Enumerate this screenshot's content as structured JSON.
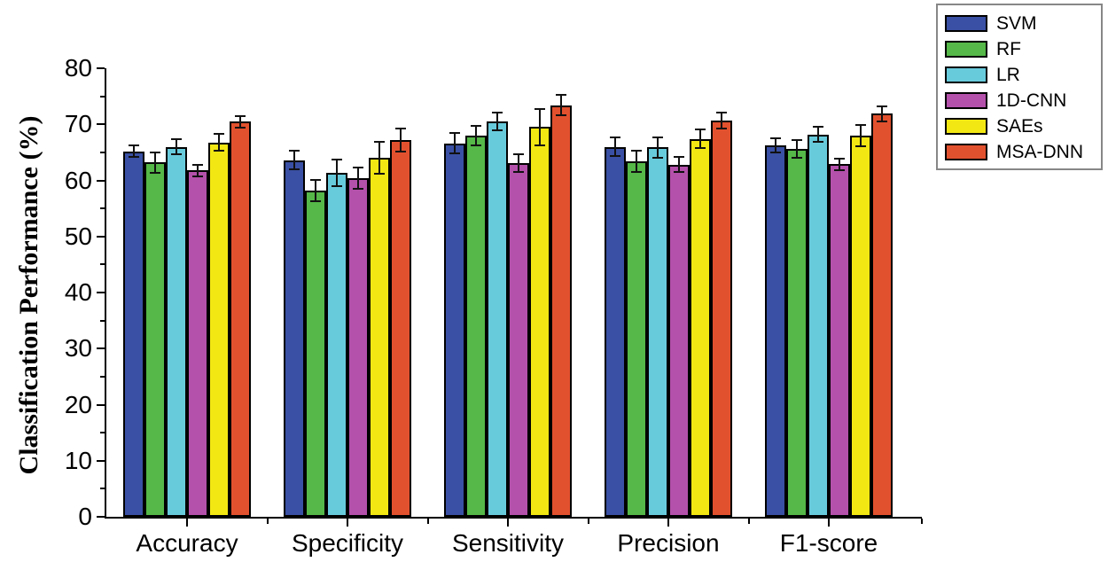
{
  "figure": {
    "background": "#ffffff",
    "axis_color": "#000000"
  },
  "chart_data": {
    "type": "bar",
    "title": "",
    "xlabel": "",
    "ylabel": "Classification Performance (%)",
    "ylim": [
      0,
      80
    ],
    "ytick_step": 10,
    "ytick_minor_step": 5,
    "yticks": [
      0,
      10,
      20,
      30,
      40,
      50,
      60,
      70,
      80
    ],
    "grid": false,
    "error_bars": true,
    "legend_position": "outside-top-right",
    "categories": [
      "Accuracy",
      "Specificity",
      "Sensitivity",
      "Precision",
      "F1-score"
    ],
    "series": [
      {
        "name": "SVM",
        "color": "#3A50A4",
        "values": [
          65.2,
          63.6,
          66.6,
          66.0,
          66.3
        ],
        "errors": [
          1.2,
          1.8,
          2.0,
          1.8,
          1.4
        ]
      },
      {
        "name": "RF",
        "color": "#55B848",
        "values": [
          63.2,
          58.2,
          68.0,
          63.4,
          65.6
        ],
        "errors": [
          2.0,
          2.0,
          1.9,
          2.0,
          1.8
        ]
      },
      {
        "name": "LR",
        "color": "#68CBDC",
        "values": [
          66.0,
          61.3,
          70.5,
          65.9,
          68.2
        ],
        "errors": [
          1.5,
          2.5,
          1.8,
          2.0,
          1.5
        ]
      },
      {
        "name": "1D-CNN",
        "color": "#B451AB",
        "values": [
          61.8,
          60.4,
          63.1,
          62.8,
          62.9
        ],
        "errors": [
          1.2,
          2.0,
          1.8,
          1.5,
          1.2
        ]
      },
      {
        "name": "SAEs",
        "color": "#F2E713",
        "values": [
          66.8,
          64.1,
          69.5,
          67.4,
          68.0
        ],
        "errors": [
          1.6,
          3.0,
          3.4,
          1.8,
          2.0
        ]
      },
      {
        "name": "MSA-DNN",
        "color": "#E2512E",
        "values": [
          70.5,
          67.2,
          73.4,
          70.7,
          71.9
        ],
        "errors": [
          1.2,
          2.2,
          2.0,
          1.6,
          1.5
        ]
      }
    ]
  }
}
